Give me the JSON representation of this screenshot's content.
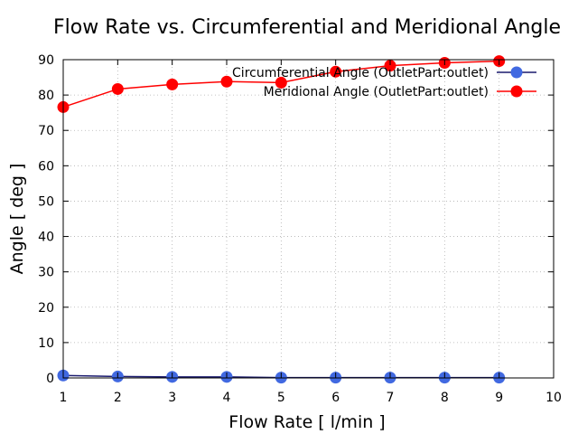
{
  "chart_data": {
    "type": "line",
    "title": "Flow Rate vs. Circumferential and Meridional Angle",
    "xlabel": "Flow Rate [ l/min ]",
    "ylabel": "Angle [ deg ]",
    "xlim": [
      1,
      10
    ],
    "ylim": [
      0,
      90
    ],
    "xticks": [
      1,
      2,
      3,
      4,
      5,
      6,
      7,
      8,
      9,
      10
    ],
    "yticks": [
      0,
      10,
      20,
      30,
      40,
      50,
      60,
      70,
      80,
      90
    ],
    "grid": true,
    "legend_position": "top-right",
    "series": [
      {
        "name": "Circumferential Angle (OutletPart:outlet)",
        "color": "#4169e1",
        "line_color": "#1a1a6e",
        "x": [
          1,
          2,
          3,
          4,
          5,
          6,
          7,
          8,
          9
        ],
        "y": [
          0.7,
          0.4,
          0.3,
          0.3,
          0.1,
          0.1,
          0.1,
          0.1,
          0.1
        ]
      },
      {
        "name": "Meridional Angle (OutletPart:outlet)",
        "color": "#ff0000",
        "line_color": "#ff0000",
        "x": [
          1,
          2,
          3,
          4,
          5,
          6,
          7,
          8,
          9
        ],
        "y": [
          76.6,
          81.7,
          83.0,
          83.8,
          83.5,
          86.6,
          88.3,
          89.1,
          89.6
        ]
      }
    ]
  }
}
